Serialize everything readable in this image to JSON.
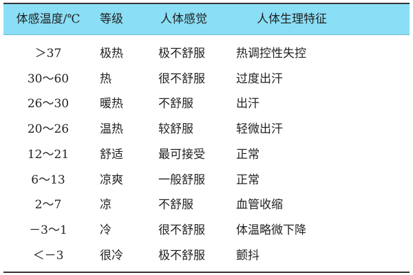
{
  "table": {
    "headers": [
      "体感温度/℃",
      "等级",
      "人体感觉",
      "人体生理特征"
    ],
    "rows": [
      [
        "＞37",
        "极热",
        "极不舒服",
        "热调控性失控"
      ],
      [
        "30～60",
        "热",
        "很不舒服",
        "过度出汗"
      ],
      [
        "26～30",
        "暖热",
        "不舒服",
        "出汗"
      ],
      [
        "20～26",
        "温热",
        "较舒服",
        "轻微出汗"
      ],
      [
        "12～21",
        "舒适",
        "最可接受",
        "正常"
      ],
      [
        "6～13",
        "凉爽",
        "一般舒服",
        "正常"
      ],
      [
        "2～7",
        "凉",
        "不舒服",
        "血管收缩"
      ],
      [
        "－3～1",
        "冷",
        "很不舒服",
        "体温略微下降"
      ],
      [
        "＜－3",
        "很冷",
        "极不舒服",
        "颤抖"
      ]
    ],
    "header_color": "#8adff6"
  }
}
